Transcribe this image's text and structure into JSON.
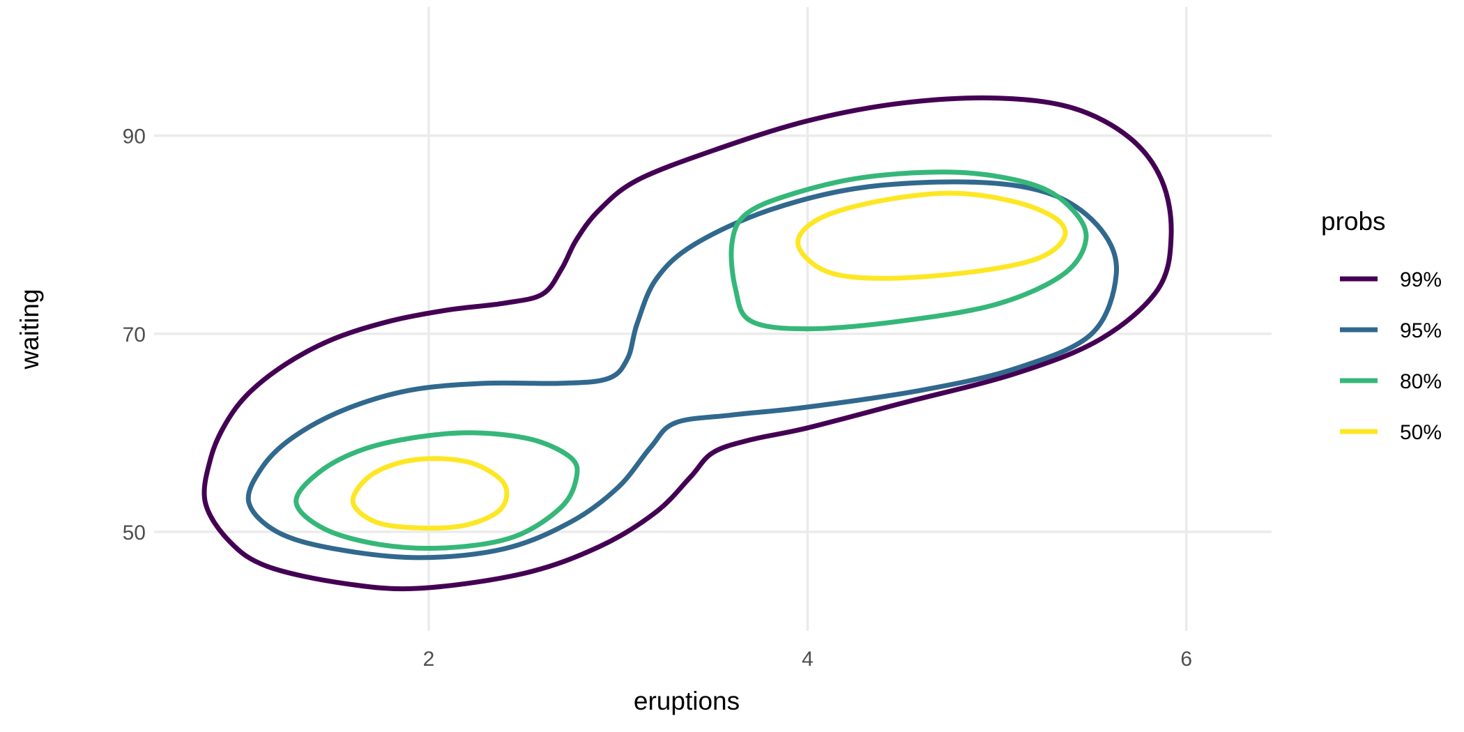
{
  "chart_data": {
    "type": "contour",
    "xlabel": "eruptions",
    "ylabel": "waiting",
    "xlim": [
      0.55,
      6.45
    ],
    "ylim": [
      40,
      103
    ],
    "x_ticks": [
      {
        "value": 2,
        "label": "2"
      },
      {
        "value": 4,
        "label": "4"
      },
      {
        "value": 6,
        "label": "6"
      }
    ],
    "y_ticks": [
      {
        "value": 50,
        "label": "50"
      },
      {
        "value": 70,
        "label": "70"
      },
      {
        "value": 90,
        "label": "90"
      }
    ],
    "grid": true,
    "legend": {
      "title": "probs",
      "position": "right",
      "entries": [
        {
          "label": "99%",
          "color": "#440154"
        },
        {
          "label": "95%",
          "color": "#31688e"
        },
        {
          "label": "80%",
          "color": "#35b779"
        },
        {
          "label": "50%",
          "color": "#fde725"
        }
      ]
    },
    "series": [
      {
        "name": "99%",
        "color": "#440154",
        "points": [
          [
            0.82,
            53.0
          ],
          [
            0.85,
            57.5
          ],
          [
            0.93,
            61.0
          ],
          [
            1.05,
            64.0
          ],
          [
            1.25,
            67.0
          ],
          [
            1.5,
            69.5
          ],
          [
            1.8,
            71.3
          ],
          [
            2.1,
            72.4
          ],
          [
            2.4,
            73.1
          ],
          [
            2.6,
            74.0
          ],
          [
            2.7,
            76.5
          ],
          [
            2.78,
            79.5
          ],
          [
            2.9,
            82.5
          ],
          [
            3.1,
            85.5
          ],
          [
            3.5,
            88.5
          ],
          [
            4.0,
            91.5
          ],
          [
            4.5,
            93.3
          ],
          [
            5.0,
            93.8
          ],
          [
            5.4,
            92.8
          ],
          [
            5.7,
            89.8
          ],
          [
            5.87,
            85.5
          ],
          [
            5.92,
            80.0
          ],
          [
            5.85,
            74.5
          ],
          [
            5.55,
            69.5
          ],
          [
            5.1,
            66.0
          ],
          [
            4.5,
            63.0
          ],
          [
            4.0,
            60.5
          ],
          [
            3.7,
            59.3
          ],
          [
            3.5,
            58.0
          ],
          [
            3.38,
            55.5
          ],
          [
            3.2,
            52.0
          ],
          [
            2.9,
            48.5
          ],
          [
            2.5,
            45.8
          ],
          [
            1.95,
            44.3
          ],
          [
            1.55,
            44.8
          ],
          [
            1.15,
            46.5
          ],
          [
            0.95,
            49.0
          ],
          [
            0.82,
            53.0
          ]
        ]
      },
      {
        "name": "95%",
        "color": "#31688e",
        "points": [
          [
            1.05,
            53.0
          ],
          [
            1.12,
            56.5
          ],
          [
            1.28,
            59.5
          ],
          [
            1.55,
            62.3
          ],
          [
            1.9,
            64.3
          ],
          [
            2.3,
            65.0
          ],
          [
            2.7,
            65.0
          ],
          [
            2.95,
            65.5
          ],
          [
            3.05,
            67.5
          ],
          [
            3.1,
            71.0
          ],
          [
            3.2,
            75.5
          ],
          [
            3.4,
            79.0
          ],
          [
            3.8,
            82.5
          ],
          [
            4.3,
            84.8
          ],
          [
            4.9,
            85.3
          ],
          [
            5.3,
            84.0
          ],
          [
            5.55,
            80.5
          ],
          [
            5.63,
            76.0
          ],
          [
            5.5,
            70.0
          ],
          [
            5.1,
            66.5
          ],
          [
            4.6,
            64.3
          ],
          [
            4.0,
            62.6
          ],
          [
            3.6,
            61.8
          ],
          [
            3.3,
            61.0
          ],
          [
            3.17,
            58.5
          ],
          [
            3.0,
            54.5
          ],
          [
            2.75,
            51.0
          ],
          [
            2.4,
            48.3
          ],
          [
            1.95,
            47.4
          ],
          [
            1.5,
            48.3
          ],
          [
            1.2,
            50.0
          ],
          [
            1.05,
            53.0
          ]
        ]
      },
      {
        "name": "80%",
        "color": "#35b779",
        "points": [
          [
            1.3,
            53.0
          ],
          [
            1.42,
            56.0
          ],
          [
            1.65,
            58.3
          ],
          [
            1.95,
            59.6
          ],
          [
            2.25,
            60.0
          ],
          [
            2.55,
            59.3
          ],
          [
            2.75,
            57.5
          ],
          [
            2.78,
            55.5
          ],
          [
            2.7,
            52.5
          ],
          [
            2.45,
            49.5
          ],
          [
            2.1,
            48.4
          ],
          [
            1.75,
            48.7
          ],
          [
            1.45,
            50.3
          ],
          [
            1.3,
            53.0
          ]
        ]
      },
      {
        "name": "80%",
        "color": "#35b779",
        "points": [
          [
            3.6,
            79.0
          ],
          [
            3.67,
            82.0
          ],
          [
            3.9,
            84.0
          ],
          [
            4.3,
            85.8
          ],
          [
            4.8,
            86.3
          ],
          [
            5.2,
            85.0
          ],
          [
            5.4,
            82.5
          ],
          [
            5.47,
            79.5
          ],
          [
            5.35,
            76.0
          ],
          [
            5.0,
            73.0
          ],
          [
            4.5,
            71.3
          ],
          [
            4.0,
            70.5
          ],
          [
            3.7,
            71.3
          ],
          [
            3.62,
            74.5
          ],
          [
            3.6,
            79.0
          ]
        ]
      },
      {
        "name": "50%",
        "color": "#fde725",
        "points": [
          [
            1.6,
            53.0
          ],
          [
            1.68,
            55.5
          ],
          [
            1.85,
            57.0
          ],
          [
            2.05,
            57.4
          ],
          [
            2.25,
            56.8
          ],
          [
            2.4,
            54.8
          ],
          [
            2.38,
            52.3
          ],
          [
            2.2,
            50.7
          ],
          [
            1.95,
            50.4
          ],
          [
            1.72,
            51.0
          ],
          [
            1.6,
            53.0
          ]
        ]
      },
      {
        "name": "50%",
        "color": "#fde725",
        "points": [
          [
            3.95,
            79.0
          ],
          [
            4.05,
            81.5
          ],
          [
            4.35,
            83.3
          ],
          [
            4.75,
            84.2
          ],
          [
            5.1,
            83.3
          ],
          [
            5.32,
            81.5
          ],
          [
            5.35,
            79.5
          ],
          [
            5.2,
            77.5
          ],
          [
            4.85,
            76.2
          ],
          [
            4.4,
            75.6
          ],
          [
            4.1,
            76.3
          ],
          [
            3.95,
            79.0
          ]
        ]
      }
    ]
  }
}
